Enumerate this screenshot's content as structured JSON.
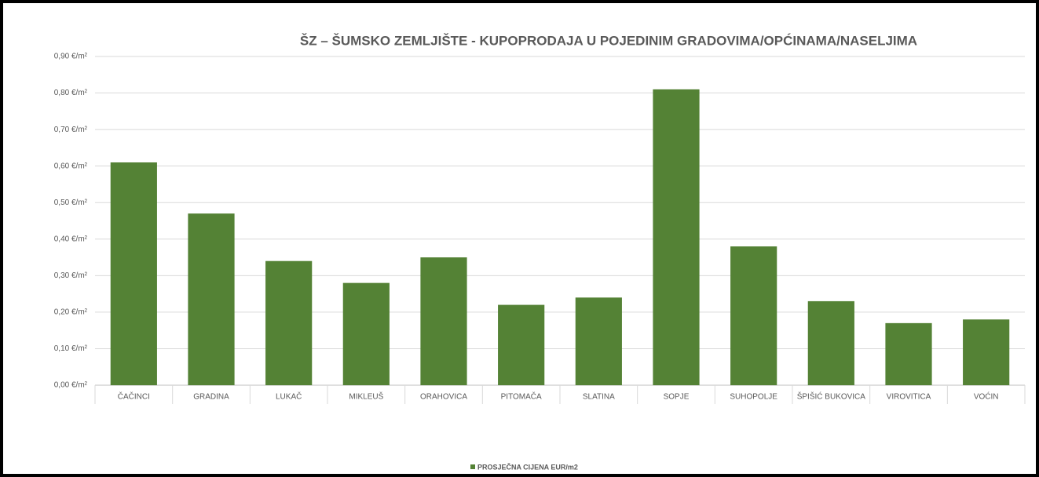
{
  "chart_data": {
    "type": "bar",
    "title": "ŠZ – ŠUMSKO ZEMLJIŠTE - KUPOPRODAJA  U POJEDINIM GRADOVIMA/OPĆINAMA/NASELJIMA",
    "categories": [
      "ČAČINCI",
      "GRADINA",
      "LUKAČ",
      "MIKLEUŠ",
      "ORAHOVICA",
      "PITOMAČA",
      "SLATINA",
      "SOPJE",
      "SUHOPOLJE",
      "ŠPIŠIĆ BUKOVICA",
      "VIROVITICA",
      "VOĆIN"
    ],
    "series": [
      {
        "name": "PROSJEČNA CIJENA EUR/m2",
        "color": "#548235",
        "values": [
          0.61,
          0.47,
          0.34,
          0.28,
          0.35,
          0.22,
          0.24,
          0.81,
          0.38,
          0.23,
          0.17,
          0.18
        ]
      }
    ],
    "ylim": [
      0,
      0.9
    ],
    "yticks": [
      {
        "value": 0,
        "label": "0,00 €/m²"
      },
      {
        "value": 0.1,
        "label": "0,10 €/m²"
      },
      {
        "value": 0.2,
        "label": "0,20 €/m²"
      },
      {
        "value": 0.3,
        "label": "0,30 €/m²"
      },
      {
        "value": 0.4,
        "label": "0,40 €/m²"
      },
      {
        "value": 0.5,
        "label": "0,50 €/m²"
      },
      {
        "value": 0.6,
        "label": "0,60 €/m²"
      },
      {
        "value": 0.7,
        "label": "0,70 €/m²"
      },
      {
        "value": 0.8,
        "label": "0,80 €/m²"
      },
      {
        "value": 0.9,
        "label": "0,90 €/m²"
      }
    ],
    "grid": true,
    "legend": "bottom"
  }
}
